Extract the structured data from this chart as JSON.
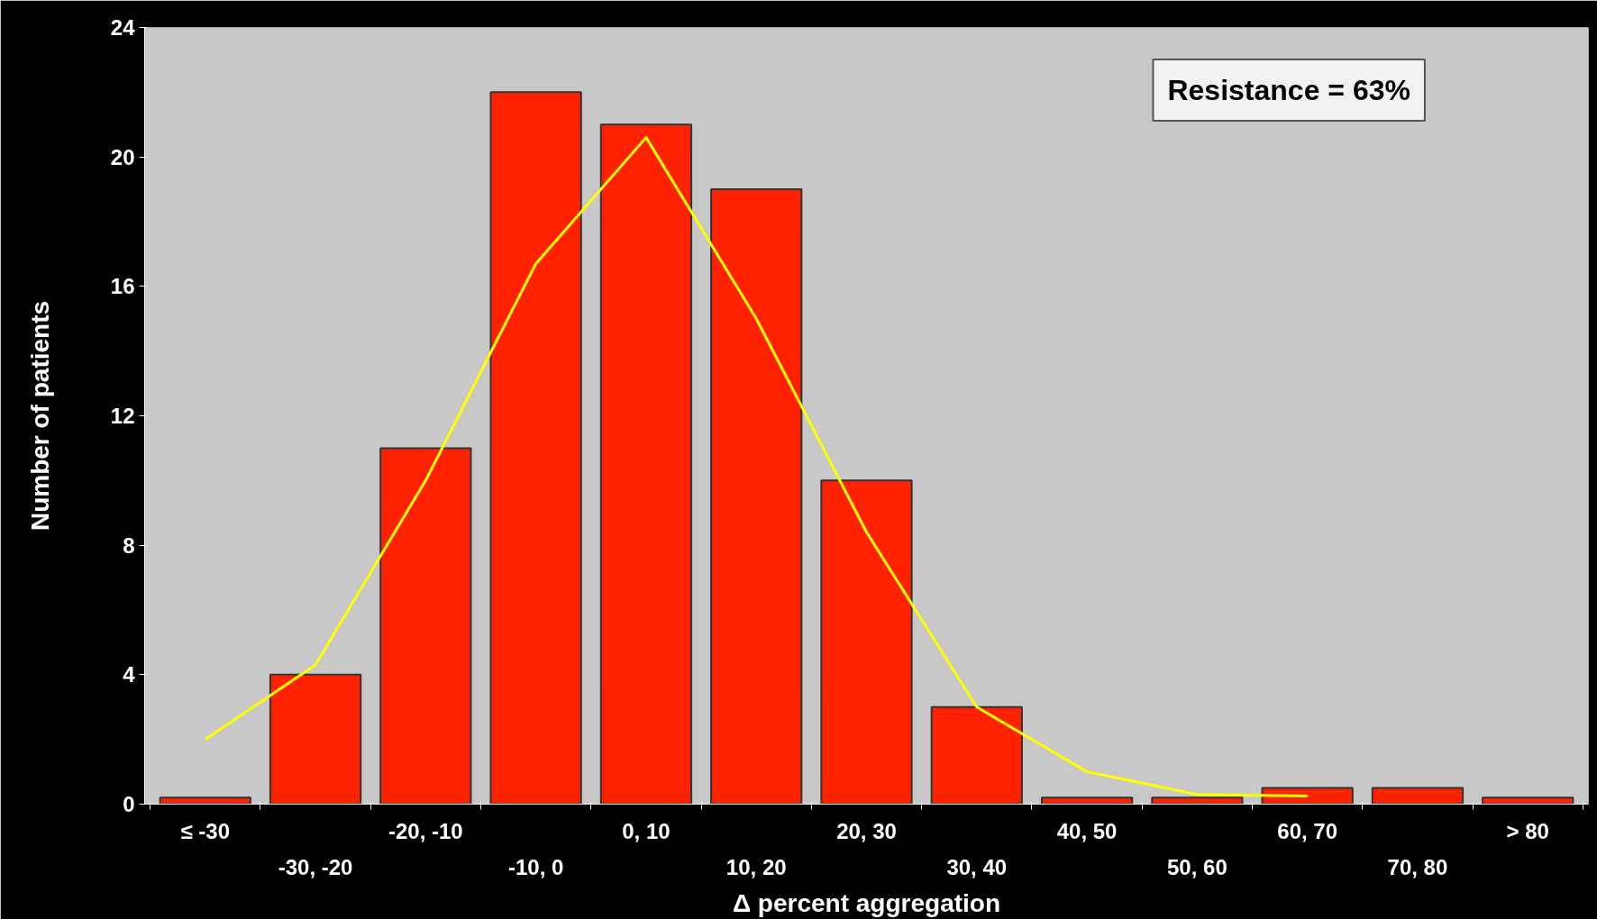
{
  "chart_data": {
    "type": "bar",
    "xlabel": "Δ percent aggregation",
    "ylabel": "Number of patients",
    "categories": [
      "≤ -30",
      "-30, -20",
      "-20, -10",
      "-10, 0",
      "0, 10",
      "10, 20",
      "20, 30",
      "30, 40",
      "40, 50",
      "50, 60",
      "60, 70",
      "70, 80",
      "> 80"
    ],
    "series": [
      {
        "color": "#ff2200",
        "values": [
          0.2,
          4,
          11,
          22,
          21,
          19,
          10,
          3,
          0.2,
          0.2,
          0.5,
          0.5,
          0.2
        ]
      },
      {
        "type": "line",
        "color": "#ffff00",
        "values": [
          2.0,
          4.3,
          10,
          16.7,
          20.6,
          15,
          8.4,
          3.0,
          1.0,
          0.3,
          0.25,
          null,
          null
        ]
      }
    ],
    "ylim": [
      0,
      24
    ],
    "yticks": [
      0,
      4,
      8,
      12,
      16,
      20,
      24
    ],
    "annotations": [
      "Resistance = 63%"
    ],
    "grid": false
  }
}
